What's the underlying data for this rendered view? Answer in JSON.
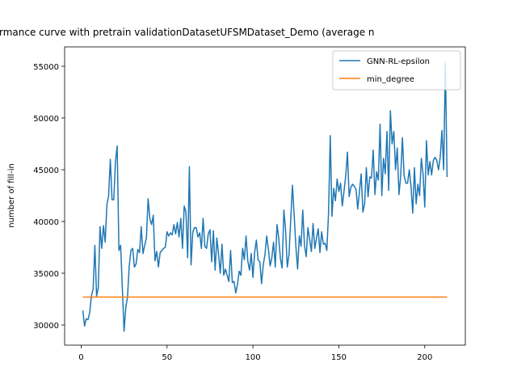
{
  "chart_data": {
    "type": "line",
    "title": "rmance curve with pretrain validationDatasetUFSMDataset_Demo (average n",
    "y_label": "number of fill-in",
    "x": [
      1,
      2,
      3,
      4,
      5,
      6,
      7,
      8,
      9,
      10,
      11,
      12,
      13,
      14,
      15,
      16,
      17,
      18,
      19,
      20,
      21,
      22,
      23,
      24,
      25,
      26,
      27,
      28,
      29,
      30,
      31,
      32,
      33,
      34,
      35,
      36,
      37,
      38,
      39,
      40,
      41,
      42,
      43,
      44,
      45,
      46,
      47,
      48,
      49,
      50,
      51,
      52,
      53,
      54,
      55,
      56,
      57,
      58,
      59,
      60,
      61,
      62,
      63,
      64,
      65,
      66,
      67,
      68,
      69,
      70,
      71,
      72,
      73,
      74,
      75,
      76,
      77,
      78,
      79,
      80,
      81,
      82,
      83,
      84,
      85,
      86,
      87,
      88,
      89,
      90,
      91,
      92,
      93,
      94,
      95,
      96,
      97,
      98,
      99,
      100,
      101,
      102,
      103,
      104,
      105,
      106,
      107,
      108,
      109,
      110,
      111,
      112,
      113,
      114,
      115,
      116,
      117,
      118,
      119,
      120,
      121,
      122,
      123,
      124,
      125,
      126,
      127,
      128,
      129,
      130,
      131,
      132,
      133,
      134,
      135,
      136,
      137,
      138,
      139,
      140,
      141,
      142,
      143,
      144,
      145,
      146,
      147,
      148,
      149,
      150,
      151,
      152,
      153,
      154,
      155,
      156,
      157,
      158,
      159,
      160,
      161,
      162,
      163,
      164,
      165,
      166,
      167,
      168,
      169,
      170,
      171,
      172,
      173,
      174,
      175,
      176,
      177,
      178,
      179,
      180,
      181,
      182,
      183,
      184,
      185,
      186,
      187,
      188,
      189,
      190,
      191,
      192,
      193,
      194,
      195,
      196,
      197,
      198,
      199,
      200,
      201,
      202,
      203,
      204,
      205,
      206,
      207,
      208,
      209,
      210,
      211,
      212,
      213
    ],
    "series": [
      {
        "name": "GNN-RL-epsilon",
        "color": "#1f77b4",
        "values": [
          31400,
          29900,
          30600,
          30500,
          31200,
          32800,
          33500,
          37700,
          32800,
          33600,
          39500,
          37400,
          39600,
          38000,
          41600,
          42500,
          46000,
          42100,
          42100,
          45800,
          47300,
          37200,
          37700,
          33500,
          29400,
          31700,
          32700,
          35700,
          37200,
          37400,
          35600,
          35900,
          37300,
          37000,
          39500,
          36900,
          37700,
          38400,
          42200,
          40300,
          39700,
          40600,
          36200,
          37100,
          35600,
          37000,
          37200,
          37400,
          37500,
          39000,
          38600,
          38900,
          38700,
          39700,
          38800,
          39900,
          38500,
          40300,
          37400,
          41500,
          40900,
          36500,
          45300,
          35800,
          39000,
          39400,
          39400,
          38500,
          38900,
          37400,
          40300,
          37600,
          37400,
          38800,
          39200,
          36100,
          39100,
          35300,
          38400,
          36800,
          35000,
          37800,
          34800,
          35400,
          34800,
          34200,
          37200,
          34100,
          34200,
          33100,
          33900,
          35200,
          34800,
          37400,
          36300,
          38600,
          36200,
          35300,
          36900,
          34600,
          37000,
          38200,
          36300,
          36100,
          34000,
          35800,
          36800,
          38600,
          37300,
          35700,
          36500,
          38000,
          35600,
          39700,
          38400,
          36400,
          35500,
          41100,
          39200,
          35600,
          36800,
          40200,
          43500,
          40600,
          37600,
          35400,
          38600,
          37600,
          41100,
          37700,
          36600,
          39400,
          38300,
          37100,
          39800,
          37400,
          38400,
          39300,
          37000,
          39000,
          37800,
          37900,
          37200,
          40800,
          48300,
          40500,
          43200,
          42000,
          44100,
          42900,
          43700,
          41500,
          42900,
          44400,
          46700,
          42400,
          43300,
          43600,
          43400,
          43100,
          41200,
          42900,
          44600,
          40900,
          41700,
          45200,
          42400,
          44300,
          44200,
          46900,
          42600,
          44800,
          44000,
          49400,
          42500,
          46100,
          44600,
          48700,
          43000,
          50700,
          47500,
          48700,
          45000,
          47100,
          42600,
          44400,
          48100,
          44400,
          43700,
          43700,
          45000,
          43400,
          40800,
          45200,
          41700,
          43600,
          42500,
          46100,
          44600,
          41400,
          47800,
          44500,
          45800,
          44500,
          45900,
          46200,
          45900,
          45000,
          46200,
          48800,
          45000,
          55300,
          44300
        ]
      },
      {
        "name": "min_degree",
        "color": "#ff7f0e",
        "values": [
          32700,
          32700,
          32700,
          32700,
          32700,
          32700,
          32700,
          32700,
          32700,
          32700,
          32700,
          32700,
          32700,
          32700,
          32700,
          32700,
          32700,
          32700,
          32700,
          32700,
          32700,
          32700,
          32700,
          32700,
          32700,
          32700,
          32700,
          32700,
          32700,
          32700,
          32700,
          32700,
          32700,
          32700,
          32700,
          32700,
          32700,
          32700,
          32700,
          32700,
          32700,
          32700,
          32700,
          32700,
          32700,
          32700,
          32700,
          32700,
          32700,
          32700,
          32700,
          32700,
          32700,
          32700,
          32700,
          32700,
          32700,
          32700,
          32700,
          32700,
          32700,
          32700,
          32700,
          32700,
          32700,
          32700,
          32700,
          32700,
          32700,
          32700,
          32700,
          32700,
          32700,
          32700,
          32700,
          32700,
          32700,
          32700,
          32700,
          32700,
          32700,
          32700,
          32700,
          32700,
          32700,
          32700,
          32700,
          32700,
          32700,
          32700,
          32700,
          32700,
          32700,
          32700,
          32700,
          32700,
          32700,
          32700,
          32700,
          32700,
          32700,
          32700,
          32700,
          32700,
          32700,
          32700,
          32700,
          32700,
          32700,
          32700,
          32700,
          32700,
          32700,
          32700,
          32700,
          32700,
          32700,
          32700,
          32700,
          32700,
          32700,
          32700,
          32700,
          32700,
          32700,
          32700,
          32700,
          32700,
          32700,
          32700,
          32700,
          32700,
          32700,
          32700,
          32700,
          32700,
          32700,
          32700,
          32700,
          32700,
          32700,
          32700,
          32700,
          32700,
          32700,
          32700,
          32700,
          32700,
          32700,
          32700,
          32700,
          32700,
          32700,
          32700,
          32700,
          32700,
          32700,
          32700,
          32700,
          32700,
          32700,
          32700,
          32700,
          32700,
          32700,
          32700,
          32700,
          32700,
          32700,
          32700,
          32700,
          32700,
          32700,
          32700,
          32700,
          32700,
          32700,
          32700,
          32700,
          32700,
          32700,
          32700,
          32700,
          32700,
          32700,
          32700,
          32700,
          32700,
          32700,
          32700,
          32700,
          32700,
          32700,
          32700,
          32700,
          32700,
          32700,
          32700,
          32700,
          32700,
          32700,
          32700,
          32700,
          32700,
          32700,
          32700,
          32700,
          32700,
          32700,
          32700,
          32700,
          32700,
          32700
        ]
      }
    ],
    "xlim": [
      -9.6,
      223.6
    ],
    "xticks": [
      0,
      50,
      100,
      150,
      200
    ],
    "ylim": [
      28050,
      56870
    ],
    "yticks": [
      30000,
      35000,
      40000,
      45000,
      50000,
      55000
    ],
    "legend": "upper right"
  }
}
